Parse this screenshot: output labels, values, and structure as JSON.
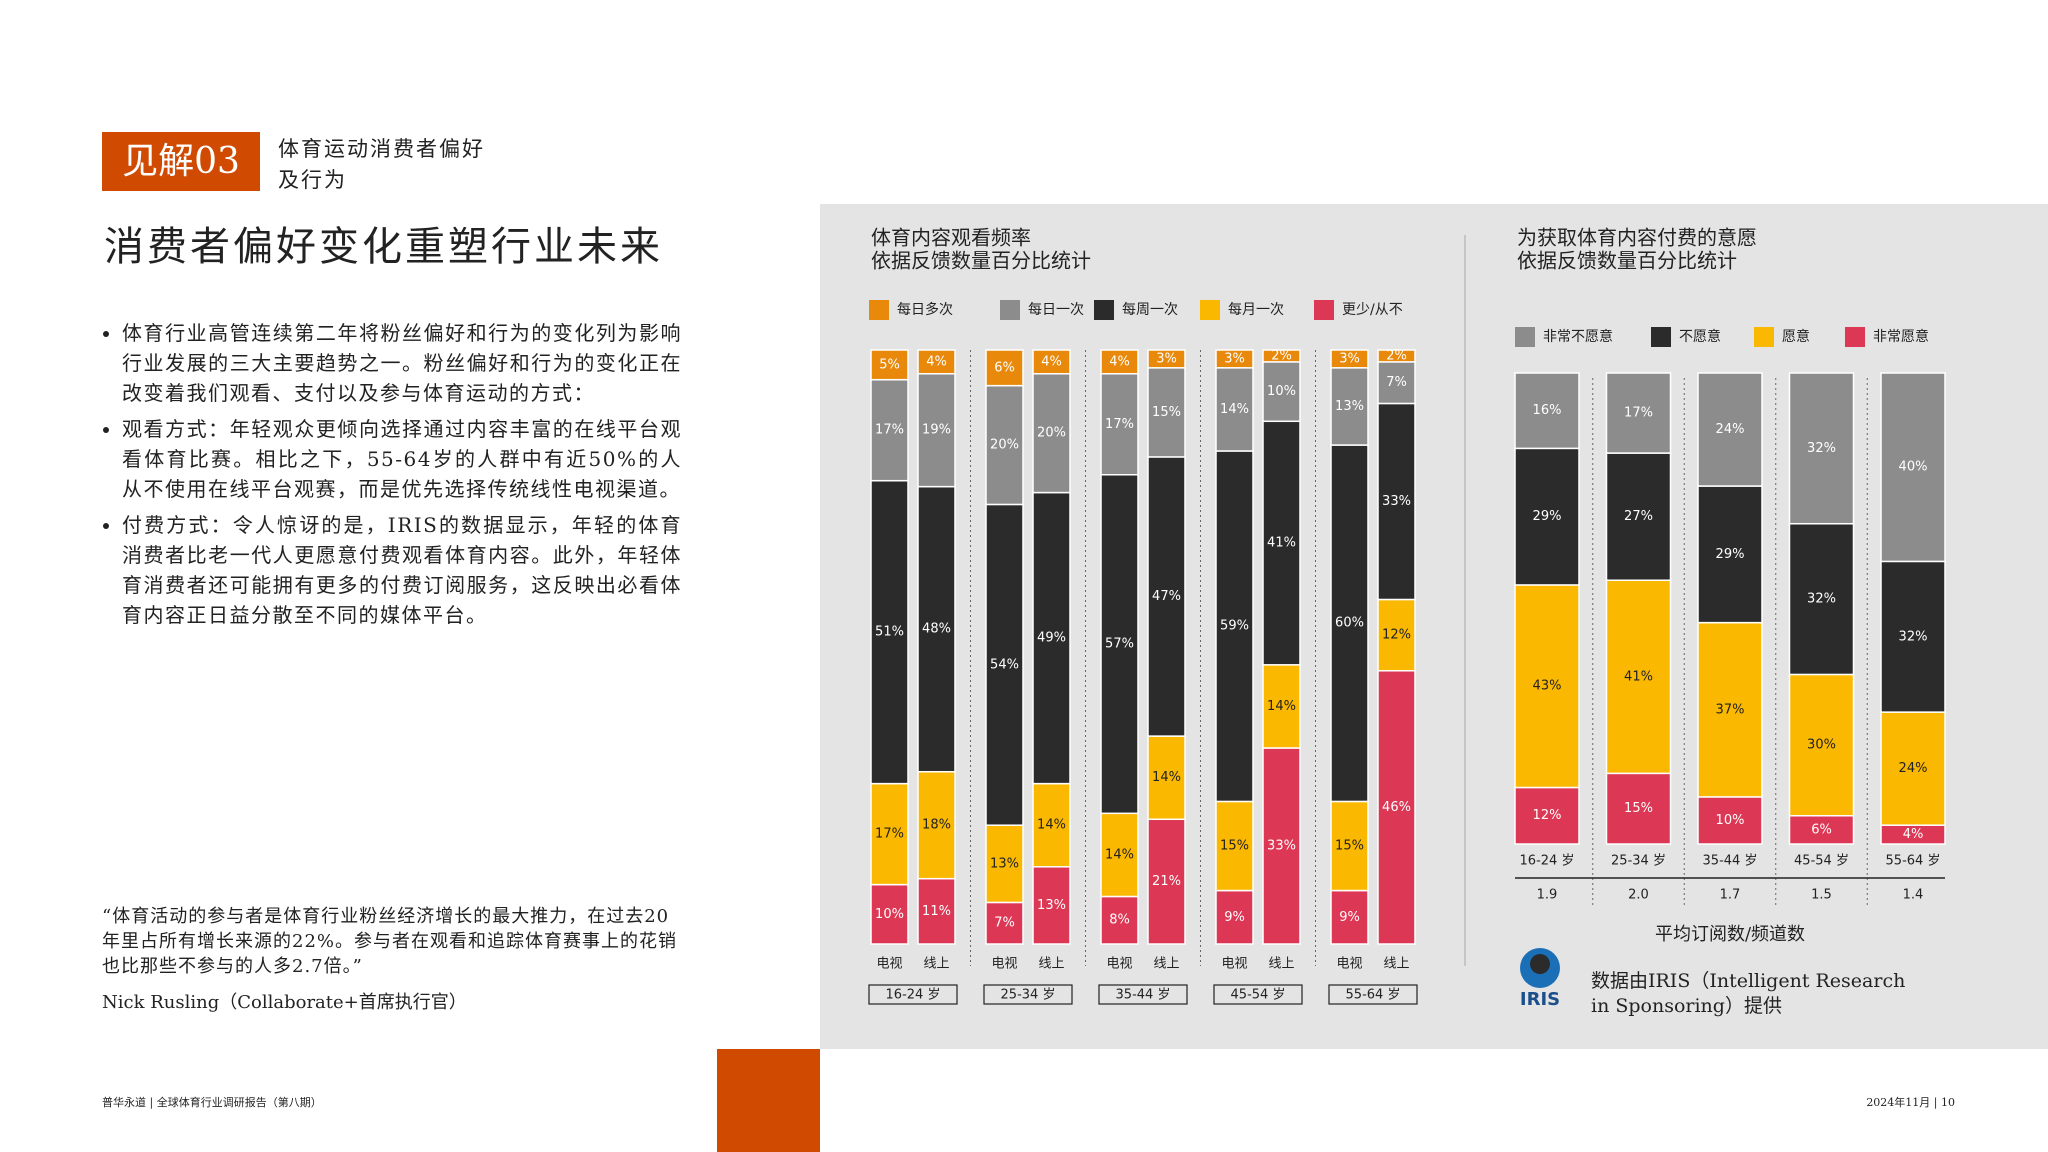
{
  "header": {
    "badge": "见解03",
    "subtitle": [
      "体育运动消费者偏好",
      "及行为"
    ],
    "title": "消费者偏好变化重塑行业未来"
  },
  "body": {
    "bullets": [
      "体育行业高管连续第二年将粉丝偏好和行为的变化列为影响行业发展的三大主要趋势之一。粉丝偏好和行为的变化正在改变着我们观看、支付以及参与体育运动的方式：",
      "观看方式：年轻观众更倾向选择通过内容丰富的在线平台观看体育比赛。相比之下，55-64岁的人群中有近50%的人从不使用在线平台观赛，而是优先选择传统线性电视渠道。",
      "付费方式：令人惊讶的是，IRIS的数据显示，年轻的体育消费者比老一代人更愿意付费观看体育内容。此外，年轻体育消费者还可能拥有更多的付费订阅服务，这反映出必看体育内容正日益分散至不同的媒体平台。"
    ]
  },
  "quote": {
    "text": "“体育活动的参与者是体育行业粉丝经济增长的最大推力，在过去20年里占所有增长来源的22%。参与者在观看和追踪体育赛事上的花销也比那些不参与的人多2.7倍。”",
    "author": "Nick Rusling（Collaborate+首席执行官）"
  },
  "chart_data": [
    {
      "type": "bar",
      "stacked": true,
      "title": [
        "体育内容观看频率",
        "依据反馈数量百分比统计"
      ],
      "groups": [
        "16-24 岁",
        "25-34 岁",
        "35-44 岁",
        "45-54 岁",
        "55-64 岁"
      ],
      "categories": [
        "电视",
        "线上",
        "电视",
        "线上",
        "电视",
        "线上",
        "电视",
        "线上",
        "电视",
        "线上"
      ],
      "ylim": [
        0,
        100
      ],
      "series": [
        {
          "name": "更少/从不",
          "color": "#dc3754",
          "values": [
            10,
            11,
            7,
            13,
            8,
            21,
            9,
            33,
            9,
            46
          ],
          "value_labels": [
            "10%",
            "11%",
            "7%",
            "13%",
            "8%",
            "21%",
            "9%",
            "33%",
            "9%",
            "46%"
          ]
        },
        {
          "name": "每月一次",
          "color": "#fbb800",
          "values": [
            17,
            18,
            13,
            14,
            14,
            14,
            15,
            14,
            15,
            12
          ],
          "value_labels": [
            "17%",
            "18%",
            "13%",
            "14%",
            "14%",
            "14%",
            "15%",
            "14%",
            "15%",
            "12%"
          ]
        },
        {
          "name": "每周一次",
          "color": "#2b2b2b",
          "values": [
            51,
            48,
            54,
            49,
            57,
            47,
            59,
            41,
            60,
            33
          ],
          "value_labels": [
            "51%",
            "48%",
            "54%",
            "49%",
            "57%",
            "47%",
            "59%",
            "41%",
            "60%",
            "33%"
          ]
        },
        {
          "name": "每日一次",
          "color": "#8c8c8c",
          "values": [
            17,
            19,
            20,
            20,
            17,
            15,
            14,
            10,
            13,
            7
          ],
          "value_labels": [
            "17%",
            "19%",
            "20%",
            "20%",
            "17%",
            "15%",
            "14%",
            "10%",
            "13%",
            "7%"
          ]
        },
        {
          "name": "每日多次",
          "color": "#e8890c",
          "values": [
            5,
            4,
            6,
            4,
            4,
            3,
            3,
            2,
            3,
            2
          ],
          "value_labels": [
            "5%",
            "4%",
            "6%",
            "4%",
            "4%",
            "3%",
            "3%",
            "2%",
            "3%",
            "2%"
          ]
        }
      ]
    },
    {
      "type": "bar",
      "stacked": true,
      "title": [
        "为获取体育内容付费的意愿",
        "依据反馈数量百分比统计"
      ],
      "categories": [
        "16-24 岁",
        "25-34 岁",
        "35-44 岁",
        "45-54 岁",
        "55-64 岁"
      ],
      "ylim": [
        0,
        100
      ],
      "series": [
        {
          "name": "非常愿意",
          "color": "#dc3754",
          "values": [
            12,
            15,
            10,
            6,
            4
          ],
          "value_labels": [
            "12%",
            "15%",
            "10%",
            "6%",
            "4%"
          ]
        },
        {
          "name": "愿意",
          "color": "#fbb800",
          "values": [
            43,
            41,
            37,
            30,
            24
          ],
          "value_labels": [
            "43%",
            "41%",
            "37%",
            "30%",
            "24%"
          ]
        },
        {
          "name": "不愿意",
          "color": "#2b2b2b",
          "values": [
            29,
            27,
            29,
            32,
            32
          ],
          "value_labels": [
            "29%",
            "27%",
            "29%",
            "32%",
            "32%"
          ]
        },
        {
          "name": "非常不愿意",
          "color": "#8c8c8c",
          "values": [
            16,
            17,
            24,
            32,
            40
          ],
          "value_labels": [
            "16%",
            "17%",
            "24%",
            "32%",
            "40%"
          ]
        }
      ],
      "subscriptions": {
        "label": "平均订阅数/频道数",
        "values": [
          1.9,
          2,
          1.7,
          1.5,
          1.4
        ],
        "value_labels": [
          "1.9",
          "2.0",
          "1.7",
          "1.5",
          "1.4"
        ]
      }
    }
  ],
  "source": {
    "logo": "IRIS",
    "text": [
      "数据由IRIS（Intelligent Research",
      "in Sponsoring）提供"
    ]
  },
  "footer": {
    "left": "普华永道 | 全球体育行业调研报告（第八期）",
    "right": "2024年11月 | 10"
  }
}
